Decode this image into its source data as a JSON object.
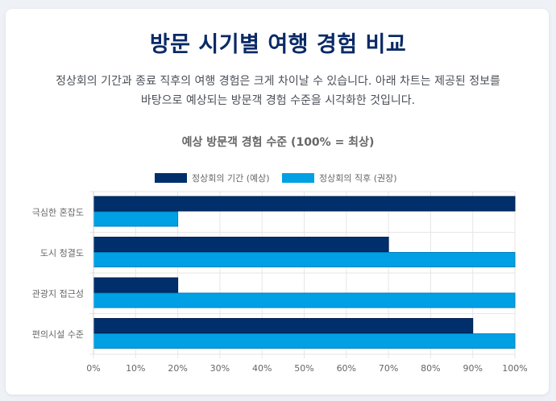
{
  "header": {
    "title": "방문 시기별 여행 경험 비교",
    "description_line1": "정상회의 기간과 종료 직후의 여행 경험은 크게 차이날 수 있습니다. 아래 차트는 제공된 정보를",
    "description_line2": "바탕으로 예상되는 방문객 경험 수준을 시각화한 것입니다."
  },
  "colors": {
    "series1": "#002f6c",
    "series2": "#00a0e4",
    "grid": "#e6e6e6",
    "text": "#666666"
  },
  "chart_data": {
    "type": "bar",
    "orientation": "horizontal",
    "title": "예상 방문객 경험 수준 (100% = 최상)",
    "categories": [
      "극심한 혼잡도",
      "도시 청결도",
      "관광지 접근성",
      "편의시설 수준"
    ],
    "series": [
      {
        "name": "정상회의 기간 (예상)",
        "values": [
          100,
          70,
          20,
          90
        ]
      },
      {
        "name": "정상회의 직후 (권장)",
        "values": [
          20,
          100,
          100,
          100
        ]
      }
    ],
    "xlim": [
      0,
      100
    ],
    "xticks": [
      "0%",
      "10%",
      "20%",
      "30%",
      "40%",
      "50%",
      "60%",
      "70%",
      "80%",
      "90%",
      "100%"
    ],
    "legend_position": "top-center",
    "grid": true
  }
}
